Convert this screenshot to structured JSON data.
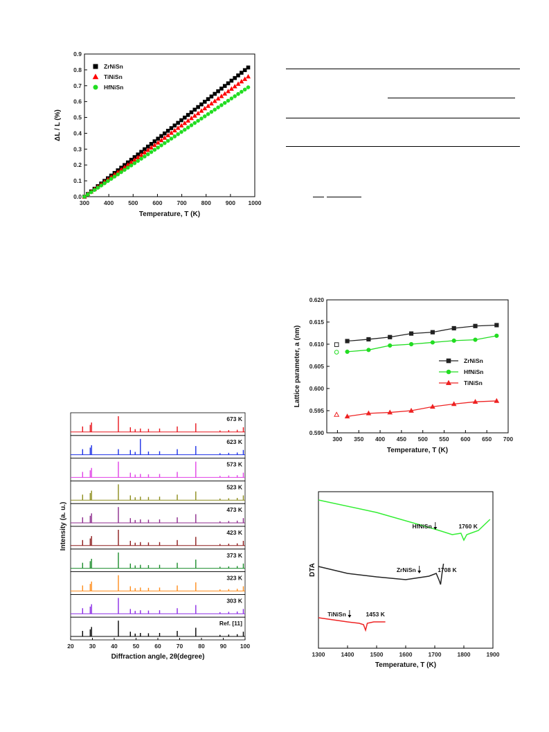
{
  "chart_data": [
    {
      "type": "scatter",
      "xlabel": "Temperature, T (K)",
      "ylabel": "ΔL / L (%)",
      "xlim": [
        300,
        1000
      ],
      "ylim": [
        0.0,
        0.9
      ],
      "xticks": [
        300,
        400,
        500,
        600,
        700,
        800,
        900,
        1000
      ],
      "yticks": [
        0.0,
        0.1,
        0.2,
        0.3,
        0.4,
        0.5,
        0.6,
        0.7,
        0.8,
        0.9
      ],
      "legend": "top-left",
      "series": [
        {
          "name": "ZrNiSn",
          "marker": "square",
          "color": "#000000",
          "x_range": [
            300,
            973
          ],
          "y_range": [
            0.0,
            0.815
          ]
        },
        {
          "name": "TiNiSn",
          "marker": "triangle",
          "color": "#ff0000",
          "x_range": [
            300,
            973
          ],
          "y_range": [
            0.0,
            0.757
          ]
        },
        {
          "name": "HfNiSn",
          "marker": "circle",
          "color": "#22dd22",
          "x_range": [
            300,
            973
          ],
          "y_range": [
            0.0,
            0.69
          ]
        }
      ]
    },
    {
      "type": "line",
      "xlabel": "Diffraction angle, 2θ(degree)",
      "ylabel": "Intensity (a. u.)",
      "xlim": [
        20,
        100
      ],
      "xticks": [
        20,
        30,
        40,
        50,
        60,
        70,
        80,
        90,
        100
      ],
      "peaks": [
        25.5,
        29.0,
        29.6,
        41.9,
        47.4,
        49.6,
        52.0,
        55.7,
        60.8,
        68.9,
        77.4,
        88.5,
        92.5,
        96.4,
        99.2
      ],
      "peak_heights": [
        0.35,
        0.45,
        0.6,
        1.0,
        0.3,
        0.18,
        0.22,
        0.2,
        0.22,
        0.35,
        0.55,
        0.1,
        0.12,
        0.14,
        0.3
      ],
      "panels": [
        {
          "label": "673 K",
          "color": "#e8131a"
        },
        {
          "label": "623 K",
          "color": "#1a2ee6"
        },
        {
          "label": "573 K",
          "color": "#e040e6"
        },
        {
          "label": "523 K",
          "color": "#8c8c1a"
        },
        {
          "label": "473 K",
          "color": "#8c2a8c"
        },
        {
          "label": "423 K",
          "color": "#8c1a1a"
        },
        {
          "label": "373 K",
          "color": "#1a8c2a"
        },
        {
          "label": "323 K",
          "color": "#ff8c1a"
        },
        {
          "label": "303 K",
          "color": "#8a2ae6"
        },
        {
          "label": "Ref. [11]",
          "color": "#000000"
        }
      ]
    },
    {
      "type": "line",
      "xlabel": "Temperature, T (K)",
      "ylabel": "Lattice parameter, a (nm)",
      "xlim": [
        275,
        700
      ],
      "ylim": [
        0.59,
        0.62
      ],
      "xticks": [
        300,
        350,
        400,
        450,
        500,
        550,
        600,
        650,
        700
      ],
      "yticks": [
        0.59,
        0.595,
        0.6,
        0.605,
        0.61,
        0.615,
        0.62
      ],
      "legend": "right",
      "series": [
        {
          "name": "ZrNiSn",
          "marker": "square",
          "color": "#222222",
          "x": [
            323,
            373,
            423,
            473,
            523,
            573,
            623,
            673
          ],
          "y": [
            0.6107,
            0.6111,
            0.6116,
            0.6124,
            0.6127,
            0.6136,
            0.6141,
            0.6143
          ],
          "ref_x": 298,
          "ref_y": 0.6099
        },
        {
          "name": "HfNiSn",
          "marker": "circle",
          "color": "#22dd22",
          "x": [
            323,
            373,
            423,
            473,
            523,
            573,
            623,
            673
          ],
          "y": [
            0.6083,
            0.6087,
            0.6097,
            0.61,
            0.6104,
            0.6108,
            0.611,
            0.6119
          ],
          "ref_x": 298,
          "ref_y": 0.6082
        },
        {
          "name": "TiNiSn",
          "marker": "triangle",
          "color": "#ee2222",
          "x": [
            323,
            373,
            423,
            473,
            523,
            573,
            623,
            673
          ],
          "y": [
            0.5937,
            0.5944,
            0.5946,
            0.595,
            0.5959,
            0.5965,
            0.597,
            0.5972
          ],
          "ref_x": 298,
          "ref_y": 0.5941
        }
      ]
    },
    {
      "type": "line",
      "xlabel": "Temperature, T (K)",
      "ylabel": "DTA",
      "xlim": [
        1300,
        1900
      ],
      "xticks": [
        1300,
        1400,
        1500,
        1600,
        1700,
        1800,
        1900
      ],
      "series": [
        {
          "name": "HfNiSn",
          "color": "#33ee33",
          "annotation": "HfNiSn",
          "event": "1760 K",
          "event_x": 1760
        },
        {
          "name": "ZrNiSn",
          "color": "#222222",
          "annotation": "ZrNiSn",
          "event": "1708 K",
          "event_x": 1708
        },
        {
          "name": "TiNiSn",
          "color": "#ee2222",
          "annotation": "TiNiSn",
          "event": "1453 K",
          "event_x": 1453
        }
      ]
    }
  ]
}
